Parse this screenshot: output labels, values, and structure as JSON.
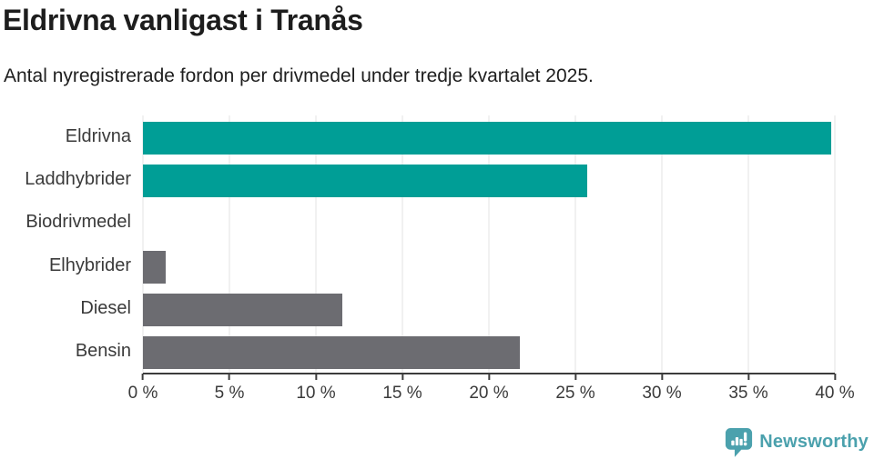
{
  "chart_data": {
    "type": "bar",
    "orientation": "horizontal",
    "title": "Eldrivna vanligast i Tranås",
    "subtitle": "Antal nyregistrerade fordon per drivmedel under tredje kvartalet 2025.",
    "categories": [
      "Eldrivna",
      "Laddhybrider",
      "Biodrivmedel",
      "Elhybrider",
      "Diesel",
      "Bensin"
    ],
    "values": [
      39.8,
      25.7,
      0,
      1.3,
      11.5,
      21.8
    ],
    "unit": "%",
    "xlim": [
      0,
      40
    ],
    "x_ticks": [
      "0 %",
      "5 %",
      "10 %",
      "15 %",
      "20 %",
      "25 %",
      "30 %",
      "35 %",
      "40 %"
    ],
    "grid": true,
    "legend": "none",
    "bar_colors": [
      "#009e96",
      "#009e96",
      "#6c6c71",
      "#6c6c71",
      "#6c6c71",
      "#6c6c71"
    ],
    "highlight_color": "#009e96",
    "default_color": "#6c6c71",
    "gridline_color": "#e3e3e3",
    "axis_line_color": "#3c3c3c"
  },
  "footer": {
    "brand": "Newsworthy",
    "brand_color": "#4ba1ad",
    "logo_icon": "newsworthy-bubble-chart-icon"
  }
}
